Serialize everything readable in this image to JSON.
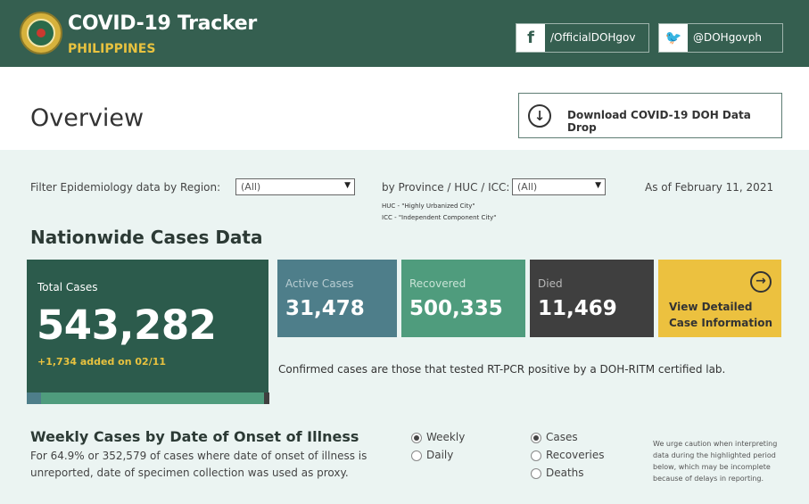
{
  "header": {
    "title": "COVID-19 Tracker",
    "subtitle": "PHILIPPINES",
    "facebook_handle": "/OfficialDOHgov",
    "twitter_handle": "@DOHgovph",
    "facebook_icon": "f",
    "twitter_icon": "🐦"
  },
  "overview": {
    "title": "Overview",
    "download_label": "Download COVID-19 DOH Data Drop"
  },
  "filters": {
    "region_label": "Filter Epidemiology data by Region:",
    "region_value": "(All)",
    "province_label": "by Province / HUC / ICC:",
    "province_value": "(All)",
    "huc_note": "HUC - \"Highly Urbanized City\"",
    "icc_note": "ICC - \"Independent Component City\"",
    "as_of": "As of February 11, 2021"
  },
  "nationwide": {
    "title": "Nationwide Cases Data",
    "total_label": "Total Cases",
    "total_value": "543,282",
    "added": "+1,734 added on 02/11",
    "active_label": "Active Cases",
    "active_value": "31,478",
    "recovered_label": "Recovered",
    "recovered_value": "500,335",
    "died_label": "Died",
    "died_value": "11,469",
    "detail_label": "View Detailed Case Information",
    "confirmed_note": "Confirmed cases are those that tested RT-PCR positive by a DOH-RITM certified lab.",
    "bar_share": {
      "active": 0.058,
      "recovered": 0.921,
      "died": 0.021
    },
    "colors": {
      "active": "#4e7e8a",
      "recovered": "#4f9c7d",
      "died": "#3f3f3f",
      "total": "#2c5b4c",
      "accent": "#ecc13f"
    }
  },
  "weekly": {
    "title": "Weekly Cases by Date of Onset of Illness",
    "description": "For 64.9% or 352,579 of cases where date of onset of illness is unreported, date of specimen collection was used as proxy.",
    "period_options": [
      "Weekly",
      "Daily"
    ],
    "period_selected": "Weekly",
    "metric_options": [
      "Cases",
      "Recoveries",
      "Deaths"
    ],
    "metric_selected": "Cases",
    "caution": "We urge caution when interpreting data during the highlighted period below, which may be incomplete because of delays in reporting."
  }
}
